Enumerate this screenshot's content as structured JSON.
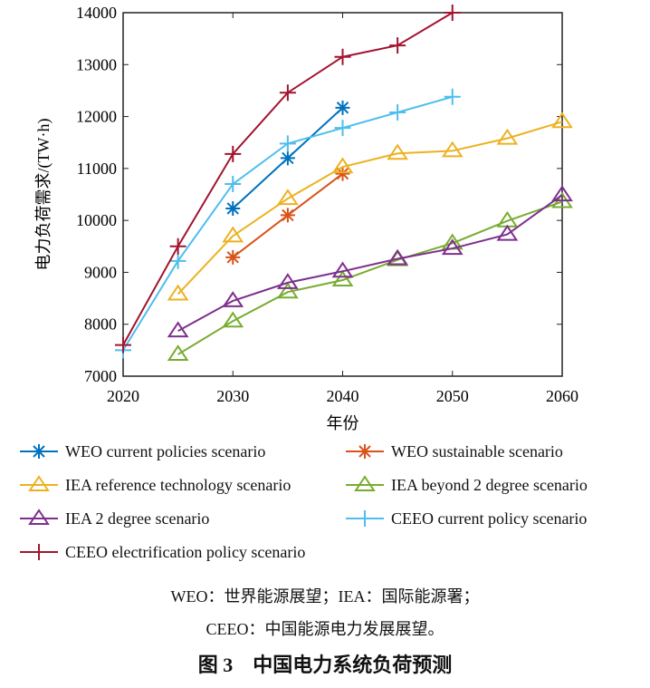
{
  "chart_data": {
    "type": "line",
    "xlabel": "年份",
    "ylabel": "电力负荷需求/(TW·h)",
    "xlim": [
      2020,
      2060
    ],
    "ylim": [
      7000,
      14000
    ],
    "xticks": [
      2020,
      2030,
      2040,
      2050,
      2060
    ],
    "yticks": [
      7000,
      8000,
      9000,
      10000,
      11000,
      12000,
      13000,
      14000
    ],
    "grid": false,
    "legend_position": "bottom",
    "series": [
      {
        "name": "WEO current policies scenario",
        "color": "#0072BD",
        "marker": "asterisk",
        "x": [
          2030,
          2035,
          2040
        ],
        "y": [
          10230,
          11200,
          12170
        ]
      },
      {
        "name": "WEO sustainable scenario",
        "color": "#D95319",
        "marker": "asterisk",
        "x": [
          2030,
          2035,
          2040
        ],
        "y": [
          9290,
          10100,
          10900
        ]
      },
      {
        "name": "IEA reference technology scenario",
        "color": "#EDB120",
        "marker": "triangle",
        "x": [
          2025,
          2030,
          2035,
          2040,
          2045,
          2050,
          2055,
          2060
        ],
        "y": [
          8580,
          9700,
          10420,
          11030,
          11290,
          11340,
          11580,
          11900
        ]
      },
      {
        "name": "IEA beyond 2 degree scenario",
        "color": "#77AC30",
        "marker": "triangle",
        "x": [
          2025,
          2030,
          2035,
          2040,
          2045,
          2050,
          2055,
          2060
        ],
        "y": [
          7420,
          8060,
          8620,
          8850,
          9240,
          9560,
          9990,
          10360
        ]
      },
      {
        "name": "IEA 2 degree scenario",
        "color": "#7E2F8E",
        "marker": "triangle",
        "x": [
          2025,
          2030,
          2035,
          2040,
          2045,
          2050,
          2055,
          2060
        ],
        "y": [
          7870,
          8450,
          8800,
          9020,
          9260,
          9460,
          9730,
          10490
        ]
      },
      {
        "name": "CEEO current policy scenario",
        "color": "#4DBEEE",
        "marker": "plus",
        "x": [
          2020,
          2025,
          2030,
          2035,
          2040,
          2045,
          2050
        ],
        "y": [
          7500,
          9220,
          10700,
          11480,
          11780,
          12080,
          12380
        ]
      },
      {
        "name": "CEEO electrification policy scenario",
        "color": "#A2142F",
        "marker": "plus",
        "x": [
          2020,
          2025,
          2030,
          2035,
          2040,
          2045,
          2050
        ],
        "y": [
          7600,
          9500,
          11280,
          12460,
          13150,
          13370,
          14000
        ]
      }
    ]
  },
  "caption": {
    "line1": "WEO：世界能源展望；IEA：国际能源署；",
    "line2": "CEEO：中国能源电力发展展望。",
    "title": "图 3　中国电力系统负荷预测"
  }
}
